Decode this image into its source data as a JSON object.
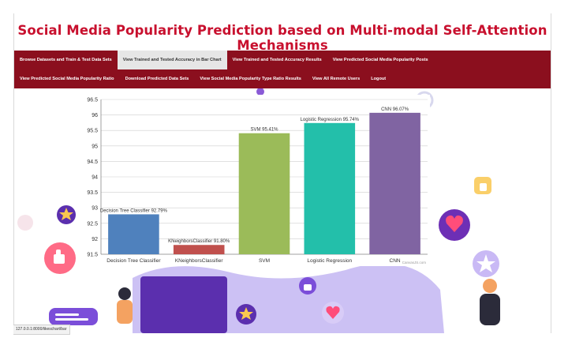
{
  "header": {
    "title": "Social Media Popularity Prediction based on Multi-modal Self-Attention Mechanisms"
  },
  "nav": {
    "row1": [
      "Browse Datasets and Train & Test Data Sets",
      "View Trained and Tested Accuracy in Bar Chart",
      "View Trained and Tested Accuracy Results",
      "View Predicted Social Media Popularity Posts"
    ],
    "row2": [
      "View Predicted Social Media Popularity Ratio",
      "Download Predicted Data Sets",
      "View Social Media Popularity Type Ratio Results",
      "View All Remote Users",
      "Logout"
    ],
    "active_index": 1
  },
  "chart_data": {
    "type": "bar",
    "categories": [
      "Decision Tree Classifier",
      "KNeighborsClassifier",
      "SVM",
      "Logistic Regression",
      "CNN"
    ],
    "values": [
      92.79,
      91.8,
      95.41,
      95.74,
      96.07
    ],
    "data_labels": [
      "Decision Tree Classifier 92.79%",
      "KNeighborsClassifier 91.80%",
      "SVM 95.41%",
      "Logistic Regression 95.74%",
      "CNN 96.07%"
    ],
    "colors": [
      "#4f81bd",
      "#c0504d",
      "#9bbb59",
      "#23bfaa",
      "#8064a2"
    ],
    "ylim": [
      91.5,
      96.5
    ],
    "yticks": [
      "91.5",
      "92",
      "92.5",
      "93",
      "93.5",
      "94",
      "94.5",
      "95",
      "95.5",
      "96",
      "96.5"
    ],
    "grid": true,
    "watermark": "CanvasJS.com"
  },
  "status": {
    "url": "127.0.0.1:8000/likeschart/bar"
  },
  "theme": {
    "accent": "#c8102e",
    "nav_bg": "#8b0f1e",
    "active_tab_bg": "#e6e6e6"
  },
  "decor_icons": [
    "heart-icon",
    "star-icon",
    "thumbs-up-icon",
    "chat-bubble-icon",
    "person-icon"
  ]
}
